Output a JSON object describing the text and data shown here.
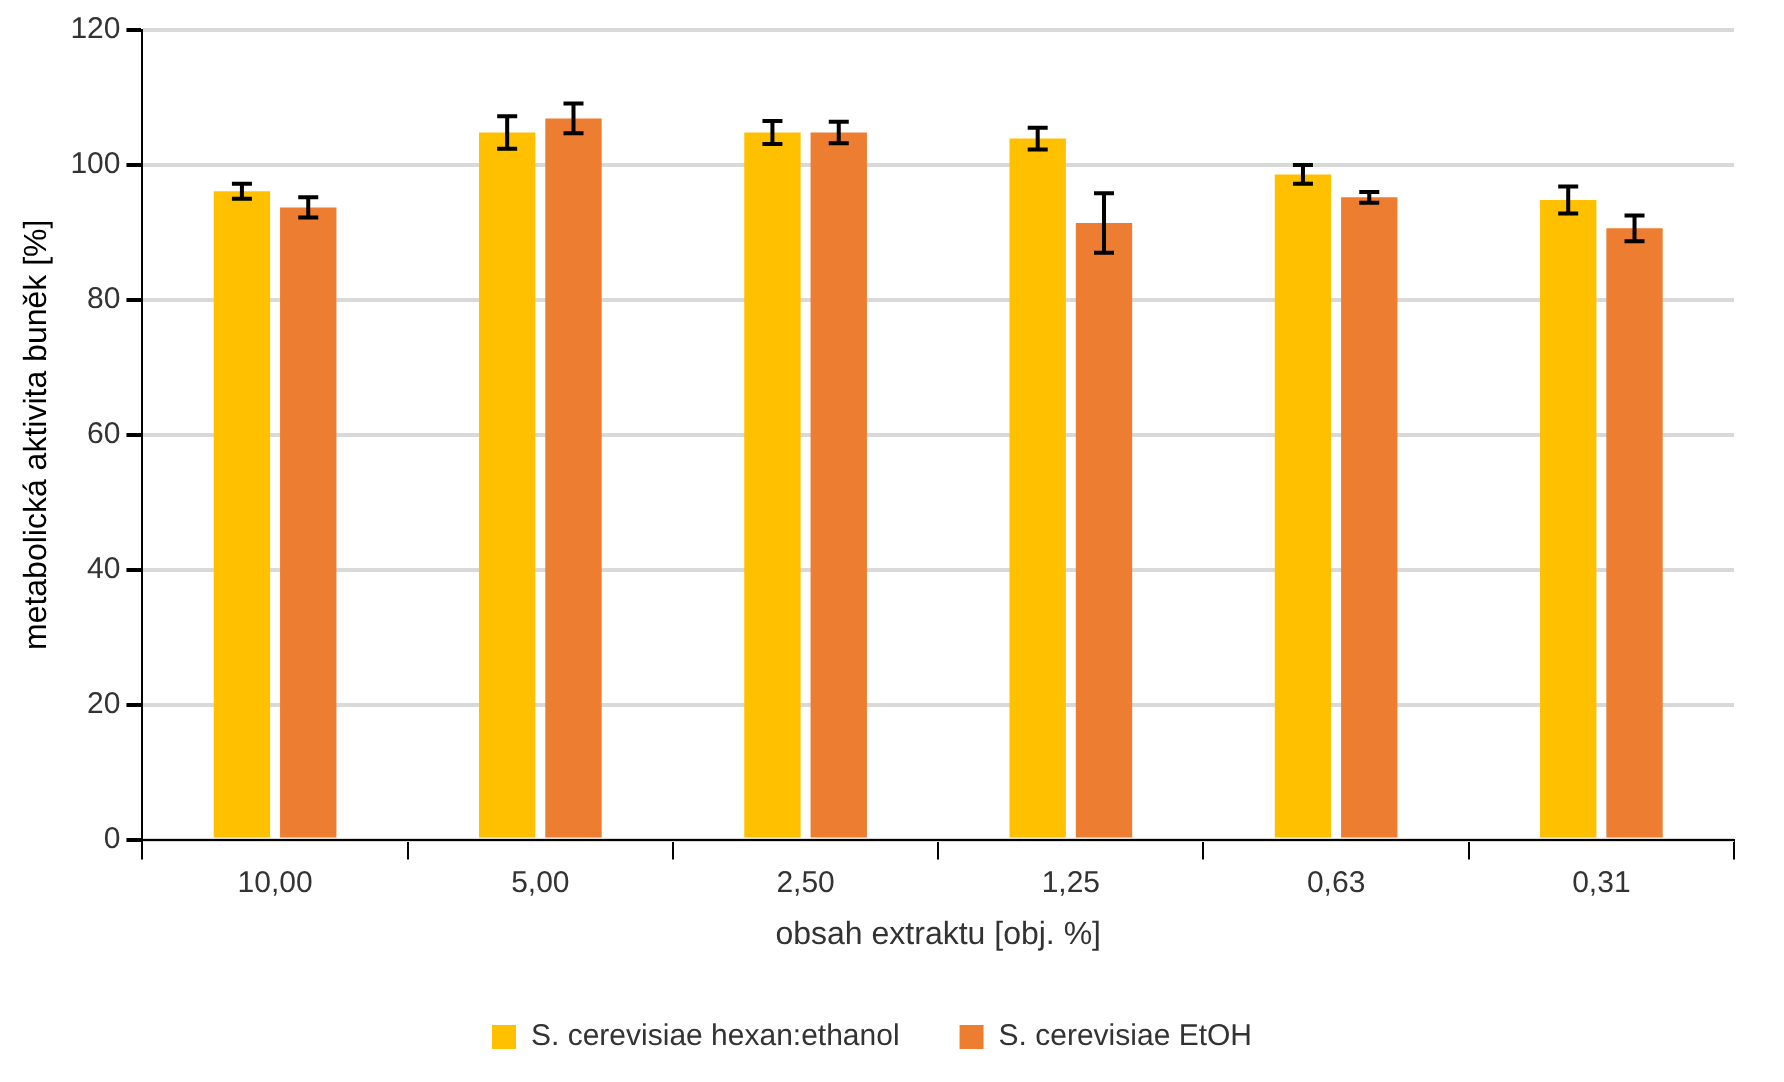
{
  "chart_data": {
    "type": "bar",
    "xlabel": "obsah extraktu [obj. %]",
    "ylabel": "metabolická aktivita buněk [%]",
    "categories": [
      "10,00",
      "5,00",
      "2,50",
      "1,25",
      "0,63",
      "0,31"
    ],
    "series": [
      {
        "name": "S. cerevisiae hexan:ethanol",
        "color": "#ffc000",
        "values": [
          96.1,
          104.8,
          104.8,
          103.9,
          98.6,
          94.8
        ],
        "errors": [
          1.1,
          2.4,
          1.7,
          1.6,
          1.4,
          2.0
        ]
      },
      {
        "name": "S. cerevisiae EtOH",
        "color": "#ed7d31",
        "values": [
          93.7,
          106.9,
          104.8,
          91.4,
          95.2,
          90.6
        ],
        "errors": [
          1.5,
          2.2,
          1.6,
          4.4,
          0.8,
          1.9
        ]
      }
    ],
    "ylim": [
      0,
      120
    ],
    "yticks": [
      0,
      20,
      40,
      60,
      80,
      100,
      120
    ],
    "grid": "y",
    "legend": "bottom"
  }
}
